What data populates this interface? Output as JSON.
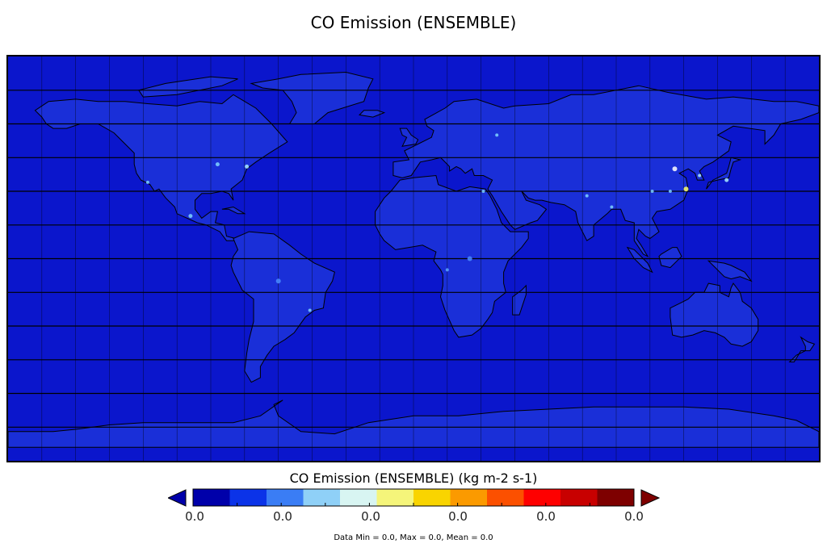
{
  "map": {
    "title": "CO Emission (ENSEMBLE)",
    "background_color": "#0b16cc",
    "land_tint": "#1a2fd8",
    "coastline_color": "#000000",
    "grid_color": "#000000",
    "grid": true
  },
  "colorbar": {
    "label": "CO Emission (ENSEMBLE) (kg m-2 s-1)",
    "tick_labels": [
      "0.0",
      "0.0",
      "0.0",
      "0.0",
      "0.0",
      "0.0"
    ],
    "colors": [
      "#0000aa",
      "#0b33e8",
      "#3a7df5",
      "#8fd0f7",
      "#d8f5f2",
      "#f5f57a",
      "#f9d400",
      "#fb9a00",
      "#fc5000",
      "#fe0000",
      "#c80000",
      "#7e0000"
    ],
    "under_color": "#0000aa",
    "over_color": "#7e0000"
  },
  "stats": {
    "text": "Data Min = 0.0, Max = 0.0, Mean = 0.0"
  }
}
